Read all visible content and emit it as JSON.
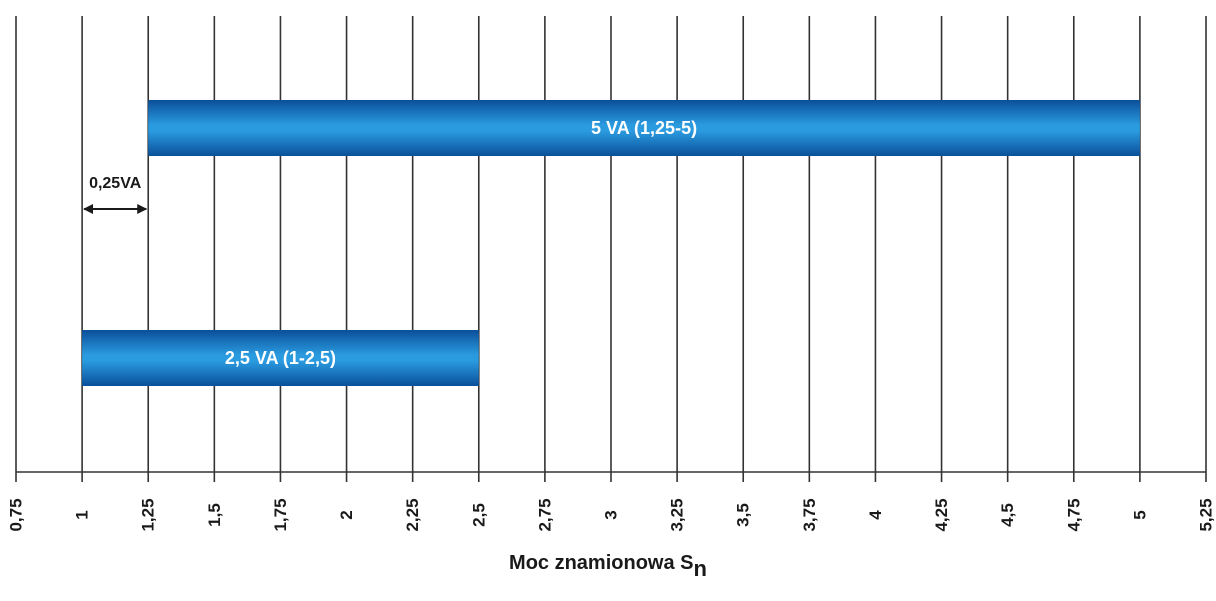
{
  "chart_data": {
    "type": "bar",
    "orientation": "horizontal",
    "xlabel_main": "Moc znamionowa S",
    "xlabel_sub": "n",
    "xlim": [
      0.75,
      5.25
    ],
    "x_ticks": [
      0.75,
      1,
      1.25,
      1.5,
      1.75,
      2,
      2.25,
      2.5,
      2.75,
      3,
      3.25,
      3.5,
      3.75,
      4,
      4.25,
      4.5,
      4.75,
      5,
      5.25
    ],
    "x_tick_labels": [
      "0,75",
      "1",
      "1,25",
      "1,5",
      "1,75",
      "2",
      "2,25",
      "2,5",
      "2,75",
      "3",
      "3,25",
      "3,5",
      "3,75",
      "4",
      "4,25",
      "4,5",
      "4,75",
      "5",
      "5,25"
    ],
    "grid": true,
    "bars": [
      {
        "label": "5 VA (1,25-5)",
        "start": 1.25,
        "end": 5
      },
      {
        "label": "2,5 VA (1-2,5)",
        "start": 1,
        "end": 2.5
      }
    ],
    "annotation": {
      "text": "0,25VA",
      "from": 1,
      "to": 1.25
    },
    "colors": {
      "bar_mid": "#2b9be0",
      "bar_edge": "#0a4f9a",
      "grid": "#333333"
    }
  }
}
